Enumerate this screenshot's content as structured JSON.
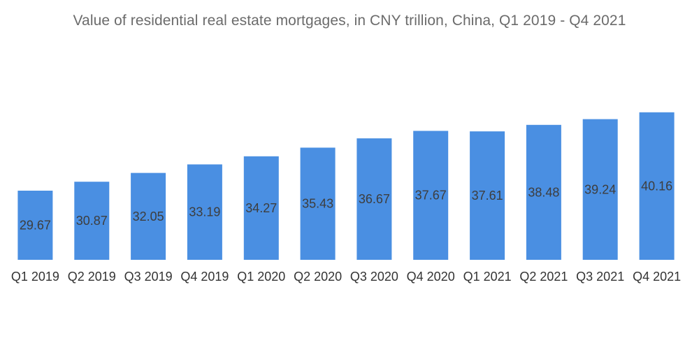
{
  "chart_data": {
    "type": "bar",
    "title": "Value of residential real estate mortgages, in CNY trillion, China, Q1 2019 - Q4 2021",
    "xlabel": "",
    "ylabel": "",
    "categories": [
      "Q1 2019",
      "Q2 2019",
      "Q3 2019",
      "Q4 2019",
      "Q1 2020",
      "Q2 2020",
      "Q3 2020",
      "Q4 2020",
      "Q1 2021",
      "Q2 2021",
      "Q3 2021",
      "Q4 2021"
    ],
    "values": [
      29.67,
      30.87,
      32.05,
      33.19,
      34.27,
      35.43,
      36.67,
      37.67,
      37.61,
      38.48,
      39.24,
      40.16
    ],
    "data_labels": [
      "29.67",
      "30.87",
      "32.05",
      "33.19",
      "34.27",
      "35.43",
      "36.67",
      "37.67",
      "37.61",
      "38.48",
      "39.24",
      "40.16"
    ],
    "grid": false,
    "legend": "none",
    "bar_color": "#4a8fe2"
  }
}
